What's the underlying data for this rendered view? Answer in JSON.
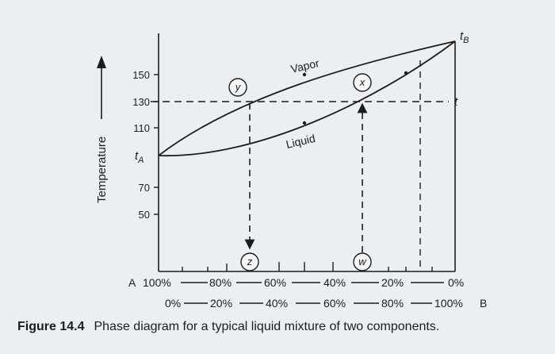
{
  "figure": {
    "number": "Figure 14.4",
    "caption": "Phase diagram for a typical liquid mixture of two components."
  },
  "axis": {
    "y_label": "Temperature",
    "y_ticks": [
      "150",
      "130",
      "110",
      "70",
      "50"
    ],
    "t_a_label": "t",
    "t_a_sub": "A",
    "t_b_label": "t",
    "t_b_sub": "B",
    "t_label": "t"
  },
  "curves": {
    "vapor_label": "Vapor",
    "liquid_label": "Liquid"
  },
  "points": {
    "x": "x",
    "y": "y",
    "z": "z",
    "w": "w"
  },
  "composition": {
    "a_prefix": "A",
    "a_values": [
      "100%",
      "80%",
      "60%",
      "40%",
      "20%",
      "0%"
    ],
    "b_values": [
      "0%",
      "20%",
      "40%",
      "60%",
      "80%",
      "100%"
    ],
    "b_suffix": "B"
  },
  "colors": {
    "ink": "#1c1c1c",
    "background": "#eceff2"
  }
}
